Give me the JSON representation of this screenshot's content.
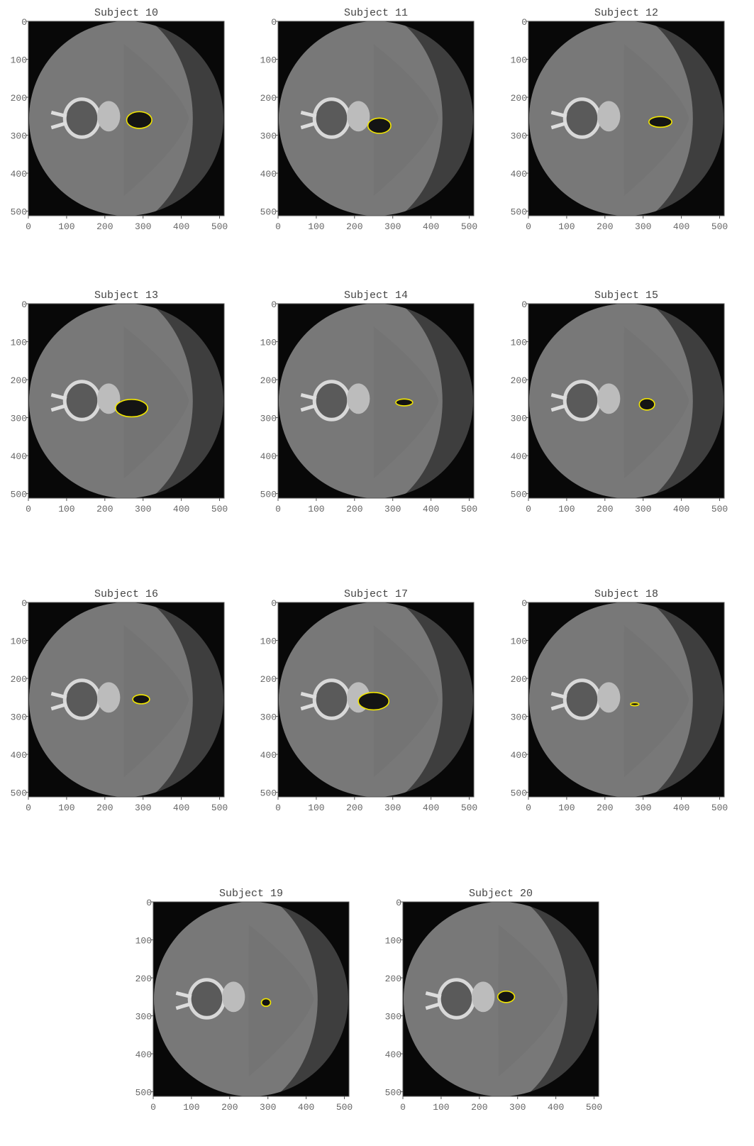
{
  "chart_data": [
    {
      "type": "image",
      "title": "Subject 10",
      "xlim": [
        0,
        512
      ],
      "ylim": [
        512,
        0
      ],
      "xticks": [
        0,
        100,
        200,
        300,
        400,
        500
      ],
      "yticks": [
        0,
        100,
        200,
        300,
        400,
        500
      ]
    },
    {
      "type": "image",
      "title": "Subject 11",
      "xlim": [
        0,
        512
      ],
      "ylim": [
        512,
        0
      ],
      "xticks": [
        0,
        100,
        200,
        300,
        400,
        500
      ],
      "yticks": [
        0,
        100,
        200,
        300,
        400,
        500
      ]
    },
    {
      "type": "image",
      "title": "Subject 12",
      "xlim": [
        0,
        512
      ],
      "ylim": [
        512,
        0
      ],
      "xticks": [
        0,
        100,
        200,
        300,
        400,
        500
      ],
      "yticks": [
        0,
        100,
        200,
        300,
        400,
        500
      ]
    },
    {
      "type": "image",
      "title": "Subject 13",
      "xlim": [
        0,
        512
      ],
      "ylim": [
        512,
        0
      ],
      "xticks": [
        0,
        100,
        200,
        300,
        400,
        500
      ],
      "yticks": [
        0,
        100,
        200,
        300,
        400,
        500
      ]
    },
    {
      "type": "image",
      "title": "Subject 14",
      "xlim": [
        0,
        512
      ],
      "ylim": [
        512,
        0
      ],
      "xticks": [
        0,
        100,
        200,
        300,
        400,
        500
      ],
      "yticks": [
        0,
        100,
        200,
        300,
        400,
        500
      ]
    },
    {
      "type": "image",
      "title": "Subject 15",
      "xlim": [
        0,
        512
      ],
      "ylim": [
        512,
        0
      ],
      "xticks": [
        0,
        100,
        200,
        300,
        400,
        500
      ],
      "yticks": [
        0,
        100,
        200,
        300,
        400,
        500
      ]
    },
    {
      "type": "image",
      "title": "Subject 16",
      "xlim": [
        0,
        512
      ],
      "ylim": [
        512,
        0
      ],
      "xticks": [
        0,
        100,
        200,
        300,
        400,
        500
      ],
      "yticks": [
        0,
        100,
        200,
        300,
        400,
        500
      ]
    },
    {
      "type": "image",
      "title": "Subject 17",
      "xlim": [
        0,
        512
      ],
      "ylim": [
        512,
        0
      ],
      "xticks": [
        0,
        100,
        200,
        300,
        400,
        500
      ],
      "yticks": [
        0,
        100,
        200,
        300,
        400,
        500
      ]
    },
    {
      "type": "image",
      "title": "Subject 18",
      "xlim": [
        0,
        512
      ],
      "ylim": [
        512,
        0
      ],
      "xticks": [
        0,
        100,
        200,
        300,
        400,
        500
      ],
      "yticks": [
        0,
        100,
        200,
        300,
        400,
        500
      ]
    },
    {
      "type": "image",
      "title": "Subject 19",
      "xlim": [
        0,
        512
      ],
      "ylim": [
        512,
        0
      ],
      "xticks": [
        0,
        100,
        200,
        300,
        400,
        500
      ],
      "yticks": [
        0,
        100,
        200,
        300,
        400,
        500
      ]
    },
    {
      "type": "image",
      "title": "Subject 20",
      "xlim": [
        0,
        512
      ],
      "ylim": [
        512,
        0
      ],
      "xticks": [
        0,
        100,
        200,
        300,
        400,
        500
      ],
      "yticks": [
        0,
        100,
        200,
        300,
        400,
        500
      ]
    }
  ]
}
